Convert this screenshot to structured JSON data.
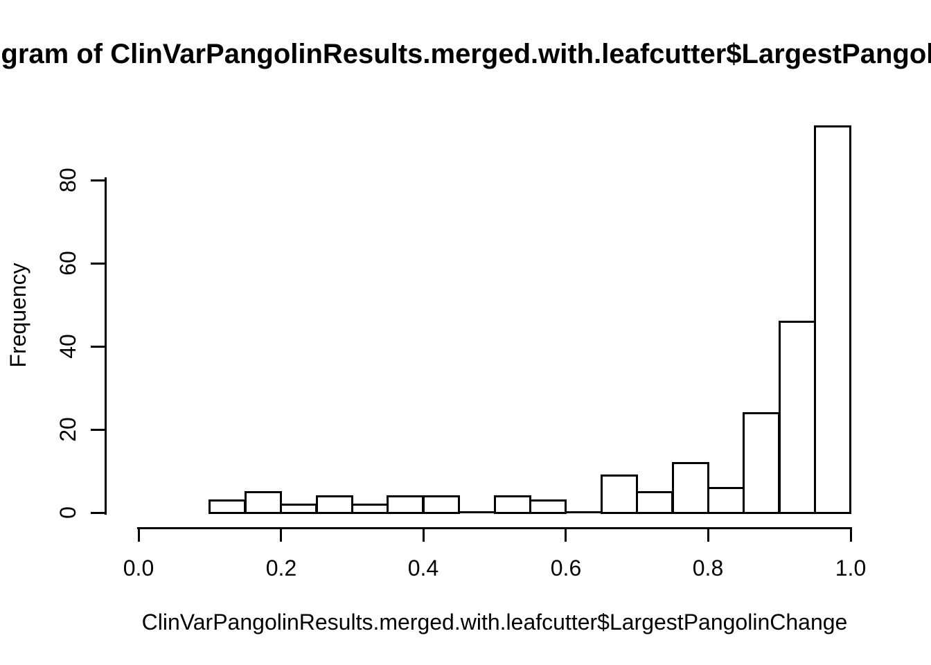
{
  "figure": {
    "background_color": "#ffffff",
    "foreground_color": "#000000"
  },
  "chart_data": {
    "type": "bar",
    "subtype": "histogram",
    "title": "Histogram of ClinVarPangolinResults.merged.with.leafcutter$LargestPangolinChange",
    "xlabel": "ClinVarPangolinResults.merged.with.leafcutter$LargestPangolinChange",
    "ylabel": "Frequency",
    "xlim": [
      0.0,
      1.0
    ],
    "ylim": [
      0,
      80
    ],
    "grid": false,
    "legend_position": "none",
    "bar_fill": "#ffffff",
    "bar_stroke": "#000000",
    "bin_width": 0.05,
    "bins": [
      {
        "from": 0.1,
        "to": 0.15,
        "count": 3
      },
      {
        "from": 0.15,
        "to": 0.2,
        "count": 5
      },
      {
        "from": 0.2,
        "to": 0.25,
        "count": 2
      },
      {
        "from": 0.25,
        "to": 0.3,
        "count": 4
      },
      {
        "from": 0.3,
        "to": 0.35,
        "count": 2
      },
      {
        "from": 0.35,
        "to": 0.4,
        "count": 4
      },
      {
        "from": 0.4,
        "to": 0.45,
        "count": 4
      },
      {
        "from": 0.45,
        "to": 0.5,
        "count": 0
      },
      {
        "from": 0.5,
        "to": 0.55,
        "count": 4
      },
      {
        "from": 0.55,
        "to": 0.6,
        "count": 3
      },
      {
        "from": 0.6,
        "to": 0.65,
        "count": 0
      },
      {
        "from": 0.65,
        "to": 0.7,
        "count": 9
      },
      {
        "from": 0.7,
        "to": 0.75,
        "count": 5
      },
      {
        "from": 0.75,
        "to": 0.8,
        "count": 12
      },
      {
        "from": 0.8,
        "to": 0.85,
        "count": 6
      },
      {
        "from": 0.85,
        "to": 0.9,
        "count": 24
      },
      {
        "from": 0.9,
        "to": 0.95,
        "count": 46
      },
      {
        "from": 0.95,
        "to": 1.0,
        "count": 93
      }
    ],
    "x_ticks": [
      {
        "value": 0.0,
        "label": "0.0"
      },
      {
        "value": 0.2,
        "label": "0.2"
      },
      {
        "value": 0.4,
        "label": "0.4"
      },
      {
        "value": 0.6,
        "label": "0.6"
      },
      {
        "value": 0.8,
        "label": "0.8"
      },
      {
        "value": 1.0,
        "label": "1.0"
      }
    ],
    "y_ticks": [
      {
        "value": 0,
        "label": "0"
      },
      {
        "value": 20,
        "label": "20"
      },
      {
        "value": 40,
        "label": "40"
      },
      {
        "value": 60,
        "label": "60"
      },
      {
        "value": 80,
        "label": "80"
      }
    ]
  }
}
